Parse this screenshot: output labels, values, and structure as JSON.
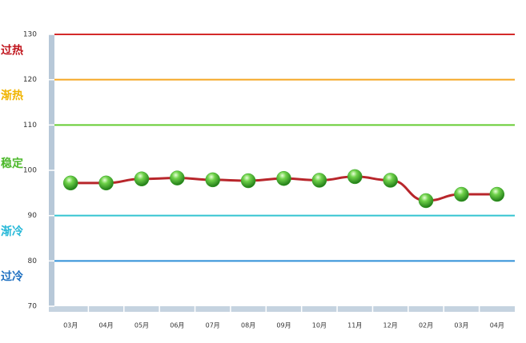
{
  "chart_data": {
    "type": "line",
    "categories": [
      "03月",
      "04月",
      "05月",
      "06月",
      "07月",
      "08月",
      "09月",
      "10月",
      "11月",
      "12月",
      "02月",
      "03月",
      "04月"
    ],
    "series": [
      {
        "color": "#b8262b",
        "values": [
          97.2,
          97.2,
          98.1,
          98.3,
          97.9,
          97.7,
          98.2,
          97.8,
          98.6,
          97.8,
          93.3,
          94.7,
          94.7
        ]
      }
    ],
    "ylim": [
      70,
      130
    ],
    "yticks": [
      70,
      80,
      90,
      100,
      110,
      120,
      130
    ],
    "thresholds": [
      {
        "value": 130,
        "color": "#d42a2a"
      },
      {
        "value": 120,
        "color": "#f5a623"
      },
      {
        "value": 110,
        "color": "#66cc33"
      },
      {
        "value": 90,
        "color": "#33c4d0"
      },
      {
        "value": 80,
        "color": "#2f8fd8"
      }
    ],
    "zones": [
      {
        "label": "过热",
        "color": "#c0141c",
        "range": [
          120,
          130
        ]
      },
      {
        "label": "渐热",
        "color": "#f0b400",
        "range": [
          110,
          120
        ]
      },
      {
        "label": "稳定",
        "color": "#4cb82a",
        "range": [
          90,
          110
        ]
      },
      {
        "label": "渐冷",
        "color": "#26b8d8",
        "range": [
          80,
          90
        ]
      },
      {
        "label": "过冷",
        "color": "#1d6fc0",
        "range": [
          70,
          80
        ]
      }
    ],
    "marker_color": "#3aa52a"
  }
}
